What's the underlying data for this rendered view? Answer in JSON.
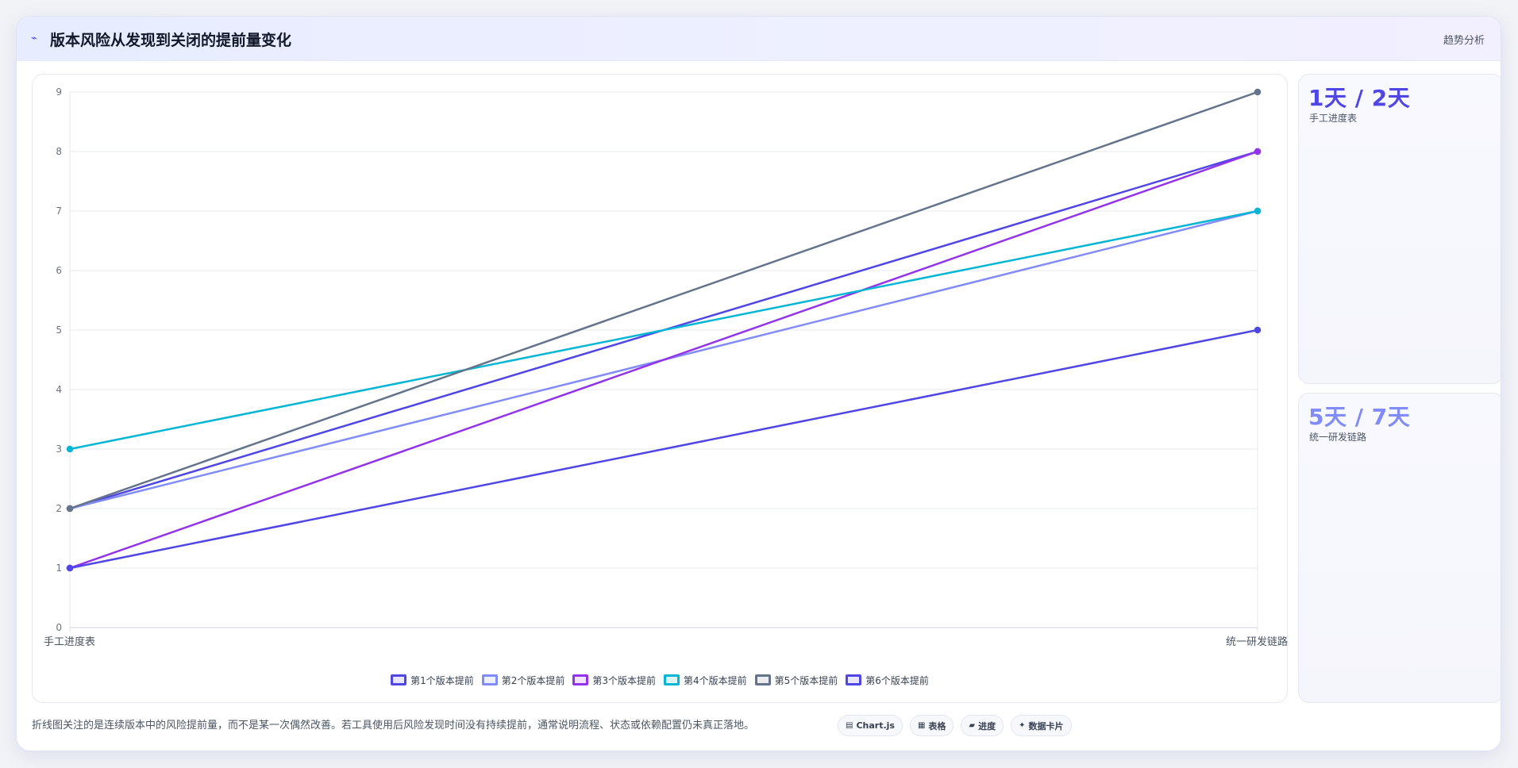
{
  "header": {
    "icon": "trend-icon",
    "title": "版本风险从发现到关闭的提前量变化",
    "tag": "趋势分析"
  },
  "chart_data": {
    "type": "line",
    "categories": [
      "手工进度表",
      "统一研发链路"
    ],
    "ylim": [
      0,
      9
    ],
    "yticks": [
      0,
      1,
      2,
      3,
      4,
      5,
      6,
      7,
      8,
      9
    ],
    "grid": true,
    "legend_position": "bottom",
    "series": [
      {
        "name": "第1个版本提前",
        "values": [
          2,
          8
        ],
        "color": "#4f46e5"
      },
      {
        "name": "第2个版本提前",
        "values": [
          2,
          7
        ],
        "color": "#818cf8"
      },
      {
        "name": "第3个版本提前",
        "values": [
          1,
          8
        ],
        "color": "#9333ea"
      },
      {
        "name": "第4个版本提前",
        "values": [
          3,
          7
        ],
        "color": "#06b6d4"
      },
      {
        "name": "第5个版本提前",
        "values": [
          2,
          9
        ],
        "color": "#64748b"
      },
      {
        "name": "第6个版本提前",
        "values": [
          1,
          5
        ],
        "color": "#4f46e5"
      }
    ]
  },
  "stats": [
    {
      "value": "1天 / 2天",
      "label": "手工进度表",
      "color": "#4f46e5"
    },
    {
      "value": "5天 / 7天",
      "label": "统一研发链路",
      "color": "#818cf8"
    }
  ],
  "footer": {
    "note": "折线图关注的是连续版本中的风险提前量，而不是某一次偶然改善。若工具使用后风险发现时间没有持续提前，通常说明流程、状态或依赖配置仍未真正落地。"
  },
  "chips": [
    {
      "icon": "▤",
      "label": "Chart.js"
    },
    {
      "icon": "▦",
      "label": "表格"
    },
    {
      "icon": "▰",
      "label": "进度"
    },
    {
      "icon": "✦",
      "label": "数据卡片"
    }
  ]
}
